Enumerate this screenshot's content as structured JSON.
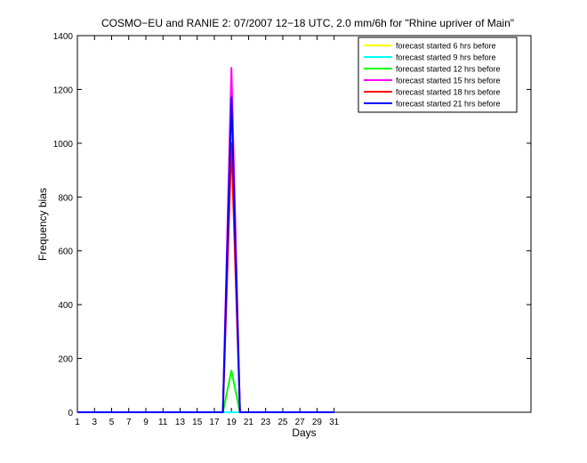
{
  "chart_data": {
    "type": "line",
    "title": "COSMO−EU and RANIE 2: 07/2007 12−18 UTC, 2.0 mm/6h for \"Rhine upriver of Main\"",
    "xlabel": "Days",
    "ylabel": "Frequency bias",
    "xlim": [
      1,
      54
    ],
    "ylim": [
      0,
      1400
    ],
    "xticks": [
      "1",
      "3",
      "5",
      "7",
      "9",
      "11",
      "13",
      "15",
      "17",
      "19",
      "21",
      "23",
      "25",
      "27",
      "29",
      "31"
    ],
    "yticks": [
      "0",
      "200",
      "400",
      "600",
      "800",
      "1000",
      "1200",
      "1400"
    ],
    "legend_position": "top-right",
    "grid": false,
    "x": [
      1,
      2,
      3,
      4,
      5,
      6,
      7,
      8,
      9,
      10,
      11,
      12,
      13,
      14,
      15,
      16,
      17,
      18,
      19,
      20,
      21,
      22,
      23,
      24,
      25,
      26,
      27,
      28,
      29,
      30,
      31
    ],
    "series": [
      {
        "name": "forecast started 6 hrs before",
        "color": "#ffff00",
        "values": [
          0,
          0,
          0,
          0,
          0,
          0,
          0,
          0,
          0,
          0,
          0,
          0,
          0,
          0,
          0,
          0,
          0,
          0,
          0,
          0,
          0,
          0,
          0,
          0,
          0,
          0,
          0,
          0,
          0,
          0,
          0
        ]
      },
      {
        "name": "forecast started 9 hrs before",
        "color": "#00ffff",
        "values": [
          0,
          0,
          0,
          0,
          0,
          0,
          0,
          0,
          0,
          0,
          0,
          0,
          0,
          0,
          0,
          0,
          0,
          0,
          0,
          0,
          0,
          0,
          0,
          0,
          0,
          0,
          0,
          0,
          0,
          0,
          0
        ]
      },
      {
        "name": "forecast started 12 hrs before",
        "color": "#00ff00",
        "values": [
          0,
          0,
          0,
          0,
          0,
          0,
          0,
          0,
          0,
          0,
          0,
          0,
          0,
          0,
          0,
          0,
          0,
          0,
          155,
          0,
          0,
          0,
          0,
          0,
          0,
          0,
          0,
          0,
          0,
          0,
          0
        ]
      },
      {
        "name": "forecast started 15 hrs before",
        "color": "#ff00ff",
        "values": [
          0,
          0,
          0,
          0,
          0,
          0,
          0,
          0,
          0,
          0,
          0,
          0,
          0,
          0,
          0,
          0,
          0,
          0,
          1280,
          0,
          0,
          0,
          0,
          0,
          0,
          0,
          0,
          0,
          0,
          0,
          0
        ]
      },
      {
        "name": "forecast started 18 hrs before",
        "color": "#ff0000",
        "values": [
          0,
          0,
          0,
          0,
          0,
          0,
          0,
          0,
          0,
          0,
          0,
          0,
          0,
          0,
          0,
          0,
          0,
          0,
          1000,
          0,
          0,
          0,
          0,
          0,
          0,
          0,
          0,
          0,
          0,
          0,
          0
        ]
      },
      {
        "name": "forecast started 21 hrs before",
        "color": "#0000ff",
        "values": [
          0,
          0,
          0,
          0,
          0,
          0,
          0,
          0,
          0,
          0,
          0,
          0,
          0,
          0,
          0,
          0,
          0,
          0,
          1170,
          0,
          0,
          0,
          0,
          0,
          0,
          0,
          0,
          0,
          0,
          0,
          0
        ]
      }
    ]
  }
}
